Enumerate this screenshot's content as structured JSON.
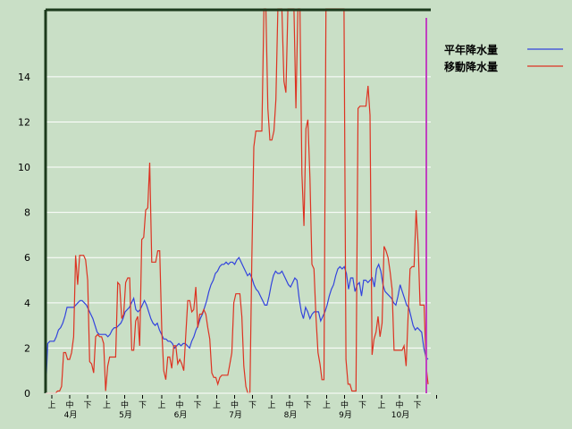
{
  "chart_data": {
    "type": "line",
    "title": "",
    "xlabel": "",
    "ylabel": "",
    "ylim": [
      0,
      17
    ],
    "yticks": [
      0,
      2,
      4,
      6,
      8,
      10,
      12,
      14
    ],
    "grid": "horizontal lines at ticks",
    "legend_position": "top-right",
    "x_day_labels": [
      "上",
      "中",
      "下"
    ],
    "x_month_labels": [
      "4月",
      "5月",
      "6月",
      "7月",
      "8月",
      "9月",
      "10月"
    ],
    "series": [
      {
        "name": "平年降水量",
        "color": "#3344dd",
        "values": [
          0.0,
          2.2,
          2.3,
          2.3,
          2.3,
          2.5,
          2.8,
          2.9,
          3.1,
          3.4,
          3.8,
          3.8,
          3.8,
          3.8,
          3.9,
          4.0,
          4.1,
          4.1,
          4.0,
          3.9,
          3.7,
          3.5,
          3.3,
          3.0,
          2.7,
          2.6,
          2.6,
          2.6,
          2.6,
          2.5,
          2.6,
          2.8,
          2.9,
          2.9,
          3.0,
          3.1,
          3.3,
          3.6,
          3.7,
          3.8,
          4.0,
          4.2,
          3.7,
          3.6,
          3.7,
          3.9,
          4.1,
          3.9,
          3.6,
          3.3,
          3.1,
          3.0,
          3.1,
          2.8,
          2.6,
          2.4,
          2.4,
          2.3,
          2.3,
          2.2,
          2.0,
          2.1,
          2.2,
          2.1,
          2.2,
          2.2,
          2.1,
          2.0,
          2.3,
          2.5,
          2.8,
          3.0,
          3.3,
          3.5,
          3.8,
          4.1,
          4.5,
          4.8,
          5.0,
          5.3,
          5.4,
          5.6,
          5.7,
          5.7,
          5.8,
          5.7,
          5.8,
          5.8,
          5.7,
          5.9,
          6.0,
          5.8,
          5.6,
          5.4,
          5.2,
          5.3,
          5.1,
          4.8,
          4.6,
          4.5,
          4.3,
          4.1,
          3.9,
          3.9,
          4.3,
          4.8,
          5.2,
          5.4,
          5.3,
          5.3,
          5.4,
          5.2,
          5.0,
          4.8,
          4.7,
          4.9,
          5.1,
          5.0,
          4.2,
          3.6,
          3.3,
          3.8,
          3.6,
          3.3,
          3.5,
          3.6,
          3.6,
          3.6,
          3.2,
          3.4,
          3.6,
          3.9,
          4.3,
          4.6,
          4.8,
          5.2,
          5.5,
          5.6,
          5.5,
          5.6,
          5.3,
          4.6,
          5.1,
          5.1,
          4.5,
          4.8,
          4.9,
          4.3,
          5.0,
          5.0,
          4.9,
          5.0,
          5.1,
          4.7,
          5.5,
          5.7,
          5.4,
          4.8,
          4.5,
          4.4,
          4.3,
          4.2,
          4.0,
          3.9,
          4.3,
          4.8,
          4.5,
          4.2,
          3.9,
          3.8,
          3.4,
          3.0,
          2.8,
          2.9,
          2.8,
          2.7,
          2.0,
          1.6,
          1.5
        ]
      },
      {
        "name": "移動降水量",
        "color": "#dd3322",
        "values": [
          0.0,
          0.0,
          0.0,
          0.0,
          0.0,
          0.0,
          0.1,
          0.1,
          0.3,
          1.8,
          1.8,
          1.5,
          1.5,
          1.8,
          2.5,
          6.1,
          4.8,
          6.1,
          6.1,
          6.1,
          5.9,
          5.0,
          1.4,
          1.3,
          0.9,
          2.5,
          2.6,
          2.5,
          2.5,
          2.2,
          0.1,
          1.2,
          1.6,
          1.6,
          1.6,
          1.6,
          4.9,
          4.8,
          3.3,
          3.5,
          4.9,
          5.1,
          5.1,
          1.9,
          1.9,
          3.2,
          3.4,
          2.1,
          6.8,
          6.9,
          8.1,
          8.2,
          10.2,
          5.8,
          5.8,
          5.8,
          6.3,
          6.3,
          2.8,
          1.0,
          0.6,
          1.6,
          1.6,
          1.1,
          2.1,
          2.1,
          1.3,
          1.5,
          1.3,
          1.0,
          2.6,
          4.1,
          4.1,
          3.6,
          3.7,
          4.7,
          2.9,
          3.5,
          3.5,
          3.7,
          3.5,
          2.9,
          2.4,
          0.9,
          0.7,
          0.7,
          0.4,
          0.7,
          0.8,
          0.8,
          0.8,
          0.8,
          1.3,
          1.8,
          4.0,
          4.4,
          4.4,
          4.4,
          3.4,
          1.2,
          0.3,
          0.0,
          0.0,
          6.0,
          10.9,
          11.6,
          11.6,
          11.6,
          11.6,
          17.5,
          17.5,
          12.6,
          11.2,
          11.2,
          11.6,
          13.0,
          17.5,
          17.5,
          17.5,
          13.8,
          13.3,
          17.5,
          17.5,
          17.5,
          17.5,
          12.6,
          17.5,
          17.5,
          9.7,
          7.4,
          11.7,
          12.1,
          9.5,
          5.7,
          5.5,
          3.4,
          1.8,
          1.3,
          0.6,
          0.6,
          17.5,
          17.5,
          17.5,
          17.5,
          17.5,
          17.5,
          17.5,
          17.5,
          17.5,
          17.5,
          1.5,
          0.4,
          0.4,
          0.1,
          0.1,
          0.1,
          12.6,
          12.7,
          12.7,
          12.7,
          12.7,
          13.6,
          12.3,
          1.7,
          2.4,
          2.7,
          3.4,
          2.5,
          3.1,
          6.5,
          6.3,
          6.0,
          5.4,
          4.6,
          1.9,
          1.9,
          1.9,
          1.9,
          1.9,
          2.1,
          1.2,
          3.4,
          5.5,
          5.6,
          5.6,
          8.1,
          6.6,
          3.9,
          3.9,
          3.9,
          1.2,
          0.4
        ]
      }
    ]
  },
  "legend": [
    {
      "label": "平年降水量",
      "color": "#3344dd"
    },
    {
      "label": "移動降水量",
      "color": "#dd3322"
    }
  ]
}
